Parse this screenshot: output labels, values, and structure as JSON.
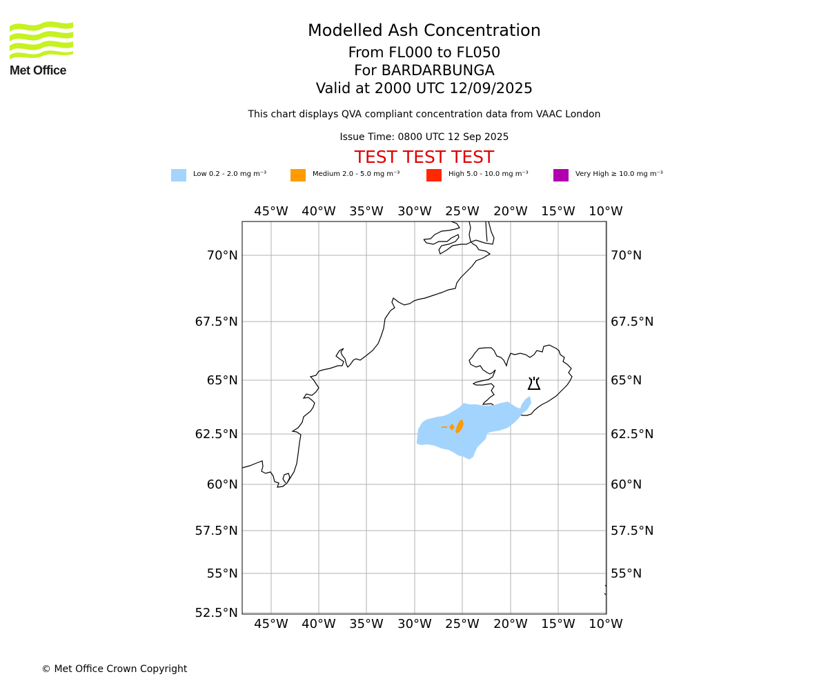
{
  "brand": {
    "name": "Met Office",
    "colors": {
      "logo_wave": "#c6f221"
    }
  },
  "header": {
    "title": "Modelled Ash Concentration",
    "levels": "From FL000 to FL050",
    "volcano": "For BARDARBUNGA",
    "valid": "Valid at 2000 UTC 12/09/2025",
    "note": "This chart displays QVA compliant concentration data from VAAC London",
    "issue": "Issue Time: 0800 UTC 12 Sep 2025",
    "test_banner": "TEST TEST TEST"
  },
  "legend": [
    {
      "label": "Low 0.2 - 2.0 mg m⁻³",
      "color": "#a3d4fd"
    },
    {
      "label": "Medium 2.0 - 5.0 mg m⁻³",
      "color": "#ff9a00"
    },
    {
      "label": "High 5.0 - 10.0 mg m⁻³",
      "color": "#ff2800"
    },
    {
      "label": "Very High ≥ 10.0 mg m⁻³",
      "color": "#b000b0"
    }
  ],
  "map": {
    "lon_ticks": [
      "45°W",
      "40°W",
      "35°W",
      "30°W",
      "25°W",
      "20°W",
      "15°W",
      "10°W"
    ],
    "lat_ticks_left": [
      "70°N",
      "67.5°N",
      "65°N",
      "62.5°N",
      "60°N",
      "57.5°N",
      "55°N",
      "52.5°N"
    ],
    "lat_ticks_right": [
      "70°N",
      "67.5°N",
      "65°N",
      "62.5°N",
      "60°N",
      "57.5°N",
      "55°N"
    ],
    "volcano_symbol": "volcano-icon",
    "colors": {
      "coast": "#000000",
      "grid": "#b0b0b0",
      "ash_low": "#a3d4fd",
      "ash_medium": "#ff9a00"
    }
  },
  "footer": {
    "copyright": "© Met Office Crown Copyright"
  }
}
